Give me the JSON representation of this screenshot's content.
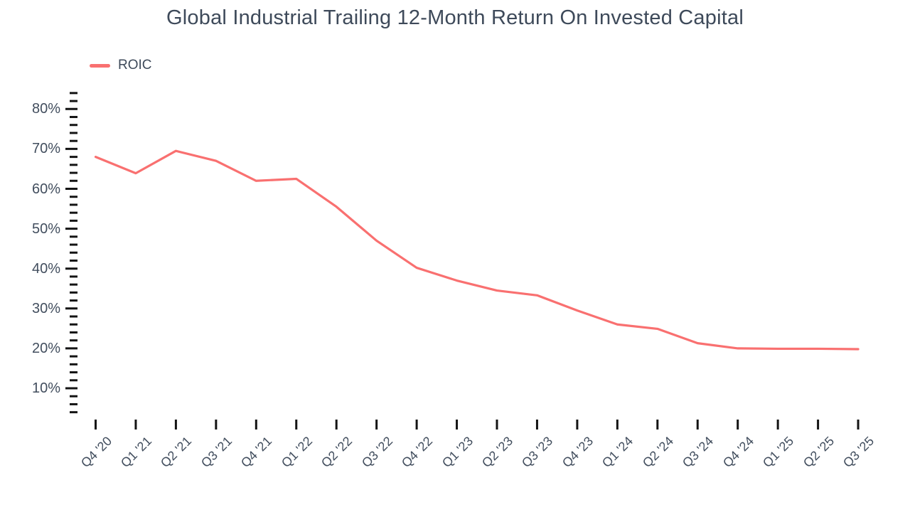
{
  "chart_data": {
    "type": "line",
    "title": "Global Industrial Trailing 12-Month Return On Invested Capital",
    "xlabel": "",
    "ylabel": "",
    "grid": false,
    "legend_position": "top-left",
    "legend": [
      {
        "label": "ROIC",
        "color": "#f97070"
      }
    ],
    "categories": [
      "Q4 '20",
      "Q1 '21",
      "Q2 '21",
      "Q3 '21",
      "Q4 '21",
      "Q1 '22",
      "Q2 '22",
      "Q3 '22",
      "Q4 '22",
      "Q1 '23",
      "Q2 '23",
      "Q3 '23",
      "Q4 '23",
      "Q1 '24",
      "Q2 '24",
      "Q3 '24",
      "Q4 '24",
      "Q1 '25",
      "Q2 '25",
      "Q3 '25"
    ],
    "series": [
      {
        "name": "ROIC",
        "color": "#f97070",
        "values": [
          68.0,
          63.9,
          69.5,
          67.0,
          62.0,
          62.5,
          55.5,
          47.0,
          40.2,
          37.0,
          34.5,
          33.3,
          29.5,
          26.0,
          24.9,
          21.3,
          20.0,
          19.9,
          19.9,
          19.8
        ]
      }
    ],
    "y_axis": {
      "unit": "%",
      "labels": [
        "10%",
        "20%",
        "30%",
        "40%",
        "50%",
        "60%",
        "70%",
        "80%"
      ],
      "label_values": [
        10,
        20,
        30,
        40,
        50,
        60,
        70,
        80
      ],
      "minor_tick_step": 2,
      "minor_tick_min": 4,
      "minor_tick_max": 84
    }
  },
  "colors": {
    "line": "#f97070",
    "title_text": "#3e4a5a",
    "axis_label_text": "#424e5e",
    "tick": "#141414",
    "background": "#ffffff"
  }
}
